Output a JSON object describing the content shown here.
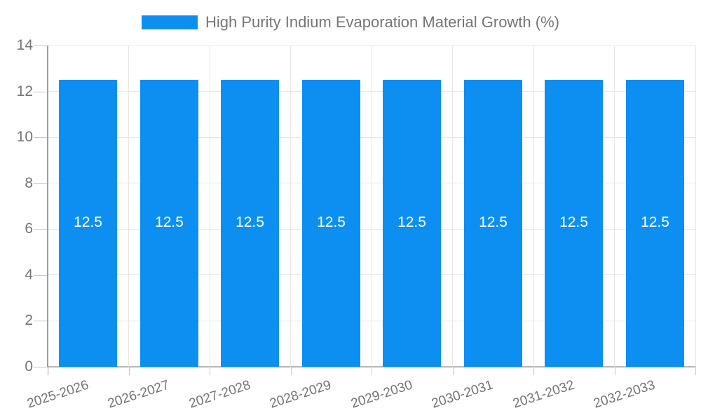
{
  "chart_data": {
    "type": "bar",
    "title": "High Purity Indium Evaporation Material Growth (%)",
    "legend_position": "top",
    "categories": [
      "2025-2026",
      "2026-2027",
      "2027-2028",
      "2028-2029",
      "2029-2030",
      "2030-2031",
      "2031-2032",
      "2032-2033"
    ],
    "values": [
      12.5,
      12.5,
      12.5,
      12.5,
      12.5,
      12.5,
      12.5,
      12.5
    ],
    "value_labels": [
      "12.5",
      "12.5",
      "12.5",
      "12.5",
      "12.5",
      "12.5",
      "12.5",
      "12.5"
    ],
    "xlabel": "",
    "ylabel": "",
    "ylim": [
      0,
      14
    ],
    "yticks": [
      0,
      2,
      4,
      6,
      8,
      10,
      12,
      14
    ],
    "grid": true,
    "colors": {
      "bar": "#0d8ff2",
      "axis_text": "#757575",
      "grid_line": "#e6e6e6",
      "x_axis_line": "#b7b7b7",
      "y_axis_line": "#9e9e9e",
      "tick": "#c9c9c9",
      "value_label": "#ffffff",
      "background": "#ffffff"
    }
  }
}
